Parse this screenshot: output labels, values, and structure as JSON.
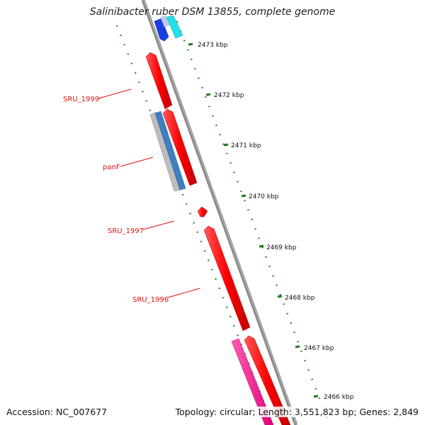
{
  "header": {
    "title": "Salinibacter ruber DSM 13855, complete genome"
  },
  "footer": {
    "accession_label": "Accession:",
    "accession_value": "NC_007677",
    "topology_label": "Topology:",
    "topology_value": "circular",
    "length_label": "Length:",
    "length_value": "3,551,823 bp",
    "genes_label": "Genes:",
    "genes_value": "2,849"
  },
  "map": {
    "ticks": [
      {
        "label": "2473 kbp"
      },
      {
        "label": "2472 kbp"
      },
      {
        "label": "2471 kbp"
      },
      {
        "label": "2470 kbp"
      },
      {
        "label": "2469 kbp"
      },
      {
        "label": "2468 kbp"
      },
      {
        "label": "2467 kbp"
      },
      {
        "label": "2466 kbp"
      }
    ],
    "gene_labels": [
      {
        "name": "SRU_1999"
      },
      {
        "name": "panF"
      },
      {
        "name": "SRU_1997"
      },
      {
        "name": "SRU_1996"
      }
    ],
    "colors": {
      "backbone": "#7a7a7a",
      "tick_green": "#1f7a1f",
      "gene_red": "#ff0000",
      "gene_blue": "#1a3fe0",
      "gene_light_blue": "#b8c0f0",
      "gene_cyan": "#22e0e8",
      "gene_steel_blue": "#3f7fc0",
      "gene_gray": "#b8b8b8",
      "gene_magenta": "#ff2d9a",
      "label_red": "#e01010"
    }
  }
}
